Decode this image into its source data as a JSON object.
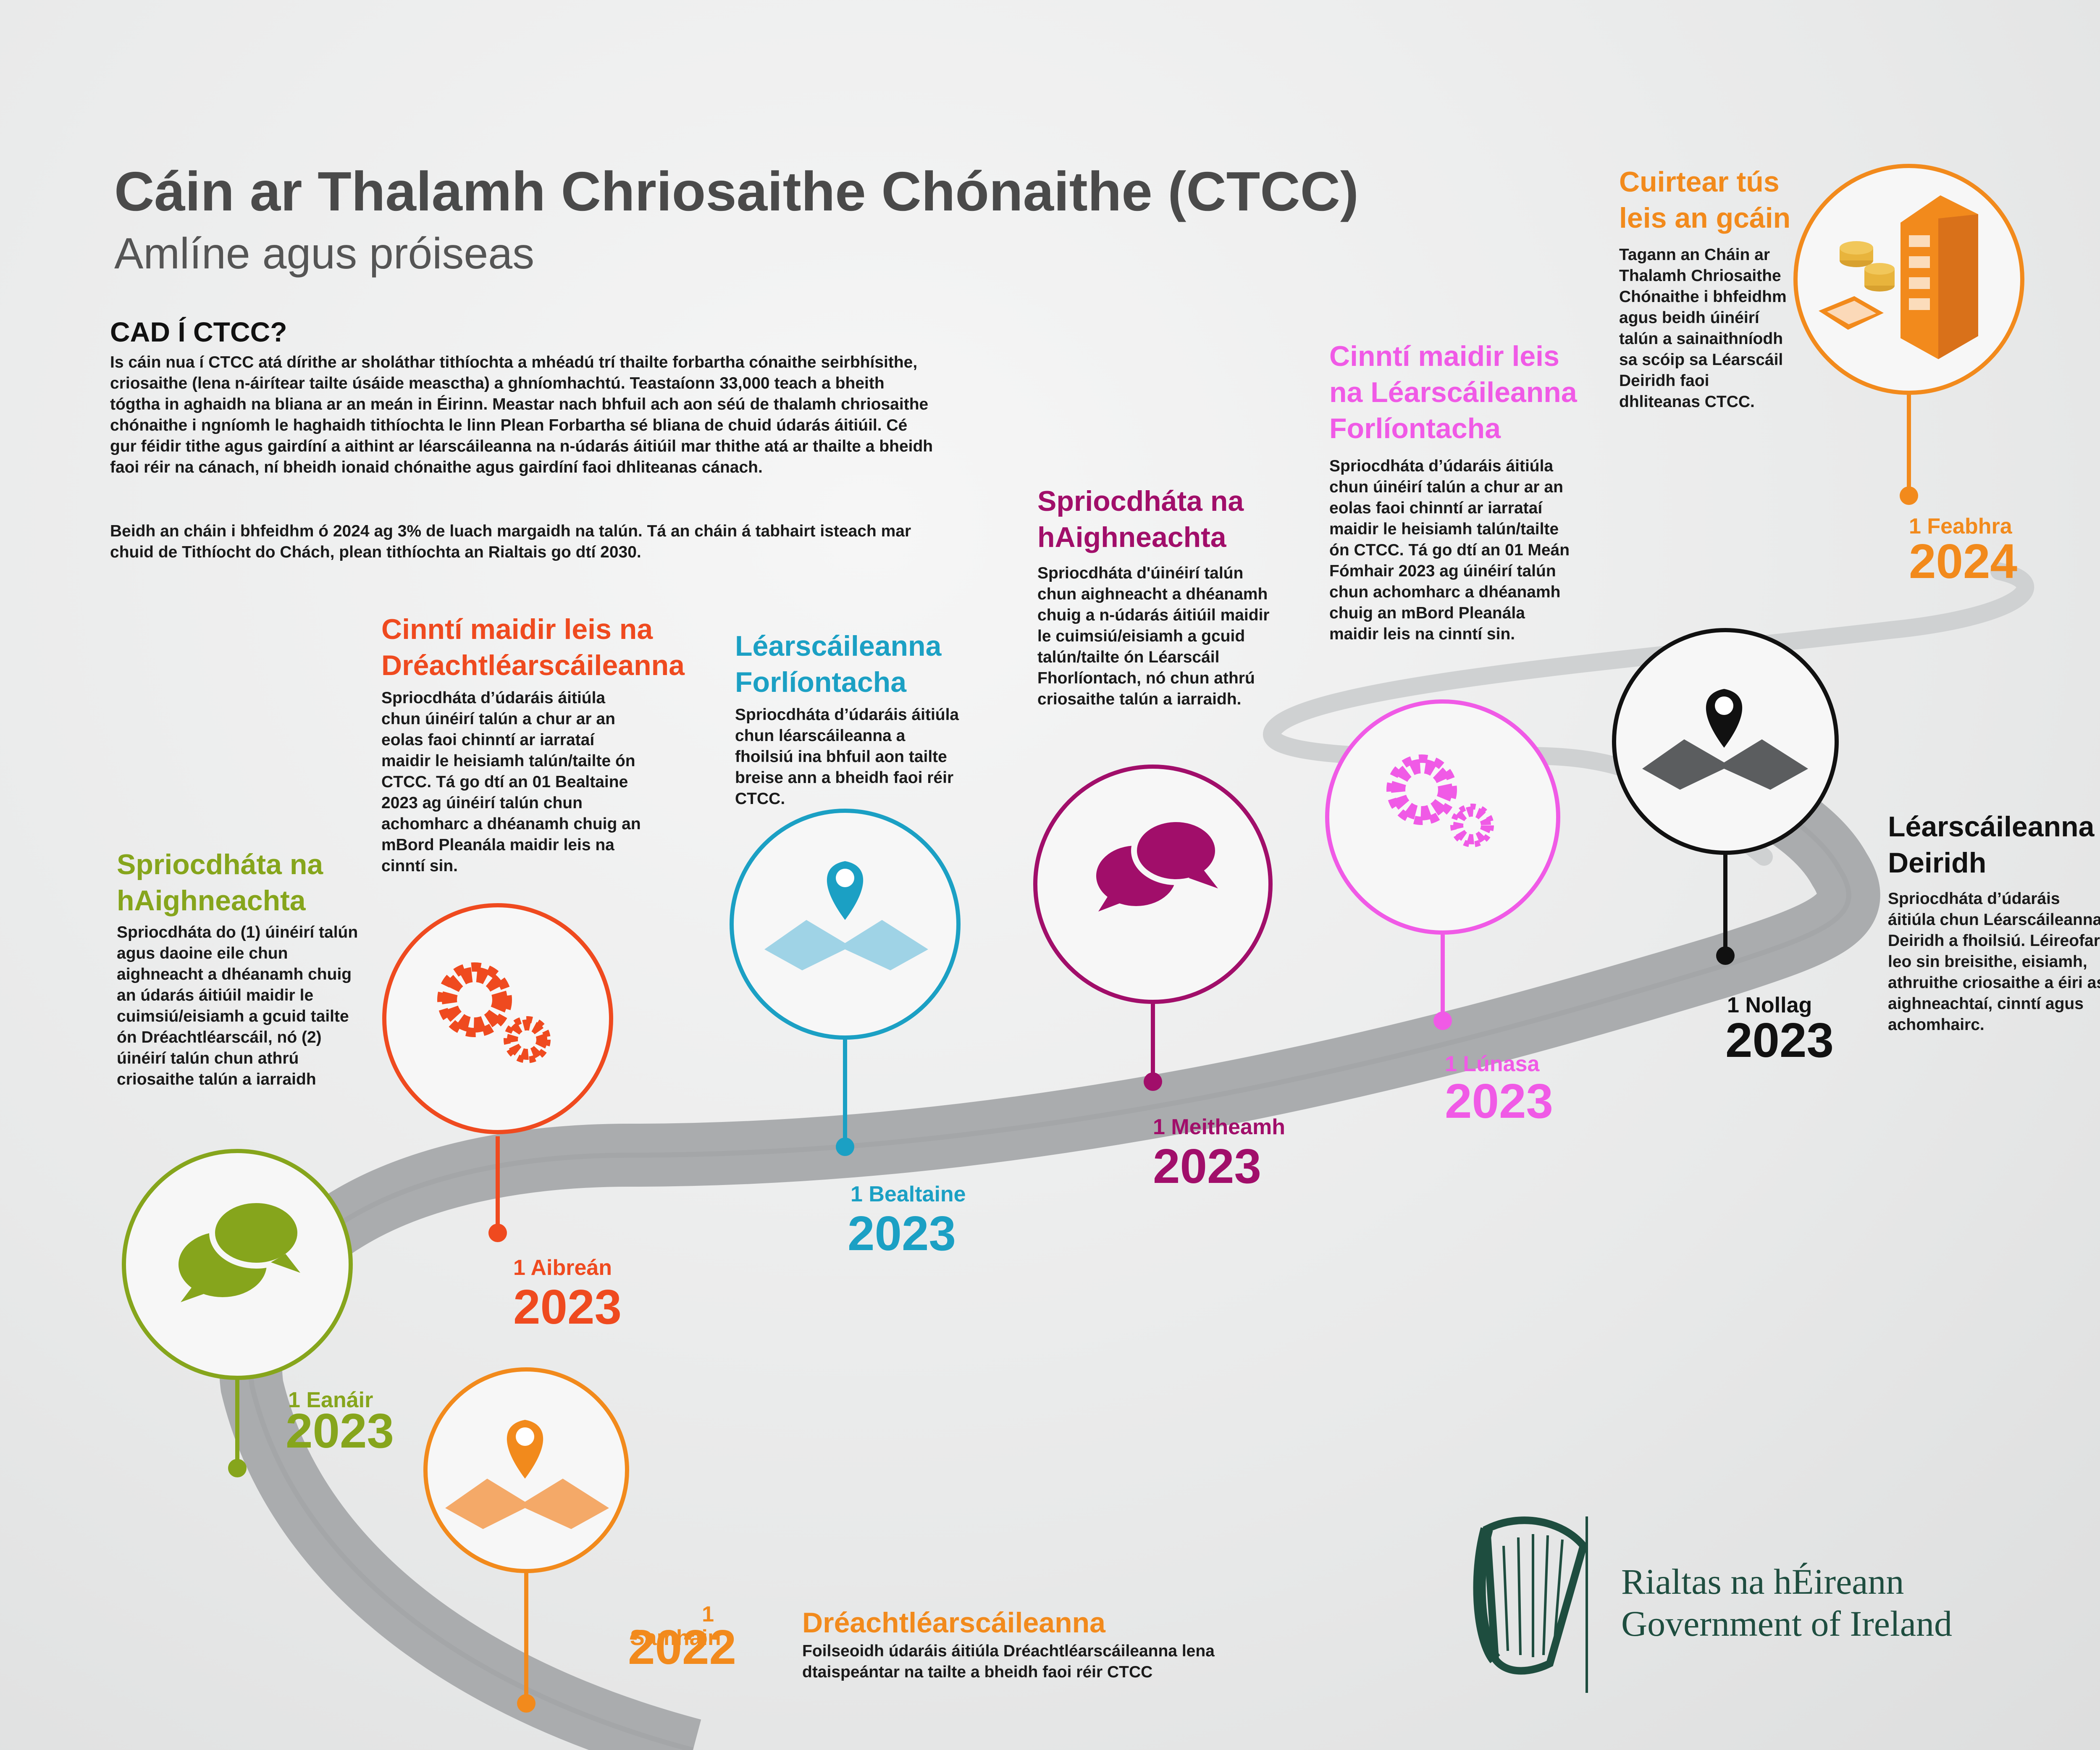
{
  "header": {
    "title": "Cáin ar Thalamh Chriosaithe Chónaithe (CTCC)",
    "subtitle": "Amlíne agus próiseas"
  },
  "intro": {
    "heading": "CAD Í CTCC?",
    "paragraph1": "Is cáin nua í CTCC atá dírithe ar sholáthar tithíochta a mhéadú trí thailte forbartha cónaithe seirbhísithe, criosaithe (lena n-áirítear tailte úsáide measctha) a ghníomhachtú. Teastaíonn 33,000 teach a bheith tógtha in aghaidh na bliana ar an meán in Éirinn. Meastar nach bhfuil ach aon séú de thalamh chriosaithe chónaithe i ngníomh le haghaidh tithíochta le linn Plean Forbartha sé bliana de chuid údarás áitiúil. Cé gur féidir tithe agus gairdíní a aithint ar léarscáileanna na n-údarás áitiúil mar thithe atá ar thailte a bheidh faoi réir na cánach, ní bheidh ionaid chónaithe agus gairdíní faoi dhliteanas cánach.",
    "paragraph2": "Beidh an cháin i bhfeidhm ó 2024 ag 3% de luach margaidh na talún. Tá an cháin á tabhairt isteach mar chuid de Tithíocht do Chách, plean tithíochta an Rialtais go dtí 2030."
  },
  "milestones": [
    {
      "id": "nov-2022",
      "color": "#f28a1c",
      "icon": "map-pin-icon",
      "date_label": "1 Samhain",
      "year": "2022",
      "heading": "Dréachtléarscáileanna",
      "text": "Foilseoidh údaráis áitiúla Dréachtléarscáileanna lena dtaispeántar na tailte a bheidh faoi réir CTCC"
    },
    {
      "id": "jan-2023",
      "color": "#86a51c",
      "icon": "speech-bubbles-icon",
      "date_label": "1 Eanáir",
      "year": "2023",
      "heading": "Spriocdháta na hAighneachta",
      "text": "Spriocdháta do (1) úinéirí talún agus daoine eile chun aighneacht a dhéanamh chuig an údarás áitiúil maidir le cuimsiú/eisiamh a gcuid tailte ón Dréachtléarscáil, nó (2) úinéirí talún chun athrú criosaithe talún a iarraidh"
    },
    {
      "id": "apr-2023",
      "color": "#ef4a1f",
      "icon": "gears-icon",
      "date_label": "1 Aibreán",
      "year": "2023",
      "heading": "Cinntí maidir leis na Dréachtléarscáileanna",
      "text": "Spriocdháta d’údaráis áitiúla chun úinéirí talún a chur ar an eolas faoi chinntí ar iarrataí maidir le heisiamh talún/tailte ón CTCC. Tá go dtí an 01 Bealtaine 2023 ag úinéirí talún chun achomharc a dhéanamh chuig an mBord Pleanála maidir leis na cinntí sin."
    },
    {
      "id": "may-2023",
      "color": "#1ba0c4",
      "icon": "map-pin-icon",
      "date_label": "1 Bealtaine",
      "year": "2023",
      "heading": "Léarscáileanna Forlíontacha",
      "text": "Spriocdháta d’údaráis áitiúla chun léarscáileanna a fhoilsiú ina bhfuil aon tailte breise ann a bheidh faoi réir CTCC."
    },
    {
      "id": "jun-2023",
      "color": "#a10e6a",
      "icon": "speech-bubbles-icon",
      "date_label": "1 Meitheamh",
      "year": "2023",
      "heading": "Spriocdháta na hAighneachta",
      "text": "Spriocdháta d'úinéirí talún chun aighneacht a dhéanamh chuig a n-údarás áitiúil maidir le cuimsiú/eisiamh a gcuid talún/tailte ón Léarscáil Fhorlíontach, nó chun athrú criosaithe talún a iarraidh."
    },
    {
      "id": "aug-2023",
      "color": "#f05ae6",
      "icon": "gears-icon",
      "date_label": "1 Lúnasa",
      "year": "2023",
      "heading": "Cinntí maidir leis na Léarscáileanna Forlíontacha",
      "text": "Spriocdháta d’údaráis áitiúla chun úinéirí talún a chur ar an eolas faoi chinntí ar iarrataí maidir le heisiamh talún/tailte ón CTCC. Tá go dtí an 01 Meán Fómhair 2023 ag úinéirí talún chun achomharc a dhéanamh chuig an mBord Pleanála maidir leis na cinntí sin."
    },
    {
      "id": "dec-2023",
      "color": "#111111",
      "icon": "map-pin-icon",
      "date_label": "1 Nollag",
      "year": "2023",
      "heading": "Léarscáileanna Deiridh",
      "text": "Spriocdháta d’údaráis áitiúla chun Léarscáileanna Deiridh a fhoilsiú. Léireofar leo sin breisithe, eisiamh, athruithe criosaithe a éiri as aighneachtaí, cinntí agus achomhairc."
    },
    {
      "id": "feb-2024",
      "color": "#f28a1c",
      "icon": "building-coins-icon",
      "date_label": "1 Feabhra",
      "year": "2024",
      "heading": "Cuirtear tús leis an gcáin",
      "text": "Tagann an Cháin ar Thalamh Chriosaithe Chónaithe i bhfeidhm agus beidh úinéirí talún a sainaithníodh sa scóip sa Léarscáil Deiridh faoi dhliteanas CTCC."
    }
  ],
  "footer": {
    "logo_icon": "harp-icon",
    "line1": "Rialtas na hÉireann",
    "line2": "Government of Ireland"
  }
}
